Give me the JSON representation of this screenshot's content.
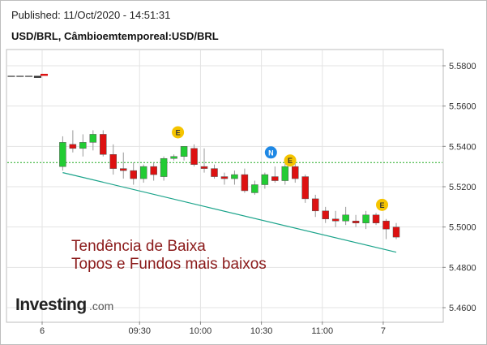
{
  "header": {
    "published": "Published: 11/Oct/2020 - 14:51:31",
    "symbol": "USD/BRL, Câmbioemtemporeal:USD/BRL"
  },
  "annotation": {
    "line1": "Tendência de Baixa",
    "line2": "Topos e Fundos mais baixos",
    "color": "#8b1a1a"
  },
  "watermark": {
    "brand": "Investing",
    "suffix": ".com"
  },
  "colors": {
    "up": "#22cc33",
    "down": "#dd1111",
    "trendline": "#1aa38a",
    "reference": "#22aa22",
    "event_badge": "#f5c400",
    "news_badge": "#1e88e5"
  },
  "chart_data": {
    "type": "candlestick",
    "ylim": [
      5.45,
      5.59
    ],
    "yticks": [
      "5.5800",
      "5.5600",
      "5.5400",
      "5.5200",
      "5.5000",
      "5.4800",
      "5.4600"
    ],
    "xticks": [
      {
        "t": 0,
        "label": "6"
      },
      {
        "t": 8,
        "label": "09:30"
      },
      {
        "t": 13,
        "label": "10:00"
      },
      {
        "t": 18,
        "label": "10:30"
      },
      {
        "t": 23,
        "label": "11:00"
      },
      {
        "t": 28,
        "label": "7"
      }
    ],
    "x_domain": [
      -1.5,
      29.6
    ],
    "reference_line": 5.532,
    "early_series": [
      {
        "t": -1.1,
        "o": 5.575,
        "h": 5.575,
        "l": 5.575,
        "c": 5.575
      },
      {
        "t": -0.7,
        "o": 5.575,
        "h": 5.575,
        "l": 5.575,
        "c": 5.575
      },
      {
        "t": -0.3,
        "o": 5.575,
        "h": 5.575,
        "l": 5.575,
        "c": 5.575
      },
      {
        "t": 0.1,
        "o": 5.575,
        "h": 5.575,
        "l": 5.574,
        "c": 5.574
      },
      {
        "t": 0.4,
        "o": 5.575,
        "h": 5.577,
        "l": 5.575,
        "c": 5.576
      }
    ],
    "candles": [
      {
        "t": 1,
        "o": 5.53,
        "h": 5.545,
        "l": 5.528,
        "c": 5.542
      },
      {
        "t": 2,
        "o": 5.541,
        "h": 5.548,
        "l": 5.537,
        "c": 5.539
      },
      {
        "t": 3,
        "o": 5.539,
        "h": 5.546,
        "l": 5.535,
        "c": 5.542
      },
      {
        "t": 4,
        "o": 5.542,
        "h": 5.548,
        "l": 5.538,
        "c": 5.546
      },
      {
        "t": 5,
        "o": 5.546,
        "h": 5.548,
        "l": 5.535,
        "c": 5.536
      },
      {
        "t": 6,
        "o": 5.536,
        "h": 5.541,
        "l": 5.526,
        "c": 5.529
      },
      {
        "t": 7,
        "o": 5.529,
        "h": 5.537,
        "l": 5.524,
        "c": 5.528
      },
      {
        "t": 8,
        "o": 5.528,
        "h": 5.532,
        "l": 5.521,
        "c": 5.524
      },
      {
        "t": 9,
        "o": 5.524,
        "h": 5.531,
        "l": 5.522,
        "c": 5.53
      },
      {
        "t": 10,
        "o": 5.53,
        "h": 5.532,
        "l": 5.523,
        "c": 5.526
      },
      {
        "t": 11,
        "o": 5.525,
        "h": 5.535,
        "l": 5.523,
        "c": 5.534
      },
      {
        "t": 12,
        "o": 5.534,
        "h": 5.536,
        "l": 5.533,
        "c": 5.535
      },
      {
        "t": 13,
        "o": 5.535,
        "h": 5.54,
        "l": 5.533,
        "c": 5.54
      },
      {
        "t": 14,
        "o": 5.539,
        "h": 5.541,
        "l": 5.53,
        "c": 5.531
      },
      {
        "t": 15,
        "o": 5.53,
        "h": 5.539,
        "l": 5.527,
        "c": 5.529
      },
      {
        "t": 16,
        "o": 5.529,
        "h": 5.531,
        "l": 5.524,
        "c": 5.525
      },
      {
        "t": 17,
        "o": 5.525,
        "h": 5.527,
        "l": 5.521,
        "c": 5.524
      },
      {
        "t": 18,
        "o": 5.524,
        "h": 5.528,
        "l": 5.521,
        "c": 5.526
      },
      {
        "t": 19,
        "o": 5.526,
        "h": 5.529,
        "l": 5.517,
        "c": 5.518
      },
      {
        "t": 20,
        "o": 5.517,
        "h": 5.523,
        "l": 5.516,
        "c": 5.521
      },
      {
        "t": 21,
        "o": 5.521,
        "h": 5.527,
        "l": 5.519,
        "c": 5.526
      },
      {
        "t": 22,
        "o": 5.525,
        "h": 5.53,
        "l": 5.522,
        "c": 5.523
      },
      {
        "t": 23,
        "o": 5.523,
        "h": 5.533,
        "l": 5.521,
        "c": 5.53
      },
      {
        "t": 24,
        "o": 5.53,
        "h": 5.532,
        "l": 5.522,
        "c": 5.524
      },
      {
        "t": 25,
        "o": 5.525,
        "h": 5.526,
        "l": 5.512,
        "c": 5.514
      },
      {
        "t": 26,
        "o": 5.514,
        "h": 5.516,
        "l": 5.505,
        "c": 5.508
      },
      {
        "t": 27,
        "o": 5.508,
        "h": 5.51,
        "l": 5.502,
        "c": 5.504
      },
      {
        "t": 28,
        "o": 5.504,
        "h": 5.508,
        "l": 5.5,
        "c": 5.503
      },
      {
        "t": 29,
        "o": 5.503,
        "h": 5.51,
        "l": 5.501,
        "c": 5.506
      },
      {
        "t": 30,
        "o": 5.503,
        "h": 5.506,
        "l": 5.5,
        "c": 5.502
      },
      {
        "t": 31,
        "o": 5.502,
        "h": 5.508,
        "l": 5.499,
        "c": 5.506
      },
      {
        "t": 32,
        "o": 5.506,
        "h": 5.507,
        "l": 5.501,
        "c": 5.502
      },
      {
        "t": 33,
        "o": 5.503,
        "h": 5.504,
        "l": 5.494,
        "c": 5.499
      },
      {
        "t": 34,
        "o": 5.5,
        "h": 5.502,
        "l": 5.494,
        "c": 5.495
      }
    ],
    "trendline": [
      {
        "t": 1,
        "y": 5.527
      },
      {
        "t": 34,
        "y": 5.4875
      }
    ],
    "event_markers": [
      {
        "label": "E",
        "kind": "event",
        "t": 12.4,
        "y": 5.547
      },
      {
        "label": "N",
        "kind": "news",
        "t": 21.6,
        "y": 5.537
      },
      {
        "label": "E",
        "kind": "event",
        "t": 23.5,
        "y": 5.533
      },
      {
        "label": "E",
        "kind": "event",
        "t": 32.6,
        "y": 5.511
      }
    ]
  }
}
